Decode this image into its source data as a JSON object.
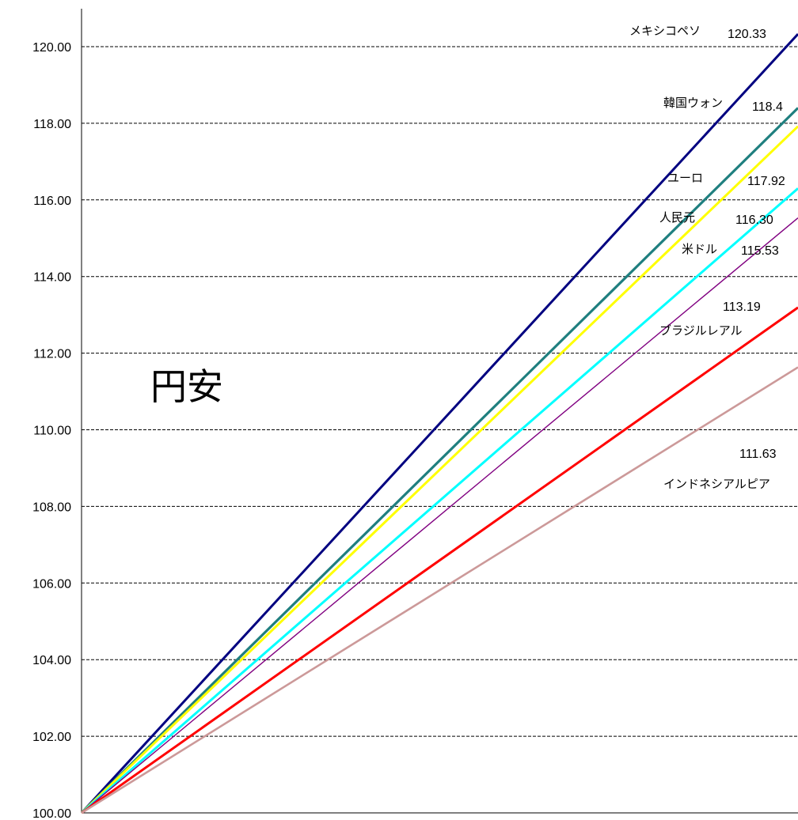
{
  "chart_data": {
    "type": "line",
    "x": [
      0,
      1
    ],
    "ylim": [
      100,
      120
    ],
    "yticks": [
      "120.00",
      "118.00",
      "116.00",
      "114.00",
      "112.00",
      "110.00",
      "108.00",
      "106.00",
      "104.00",
      "102.00",
      "100.00"
    ],
    "grid": true,
    "legend": "none",
    "annotation": "円安",
    "series": [
      {
        "name": "メキシコペソ",
        "values": [
          100,
          120.33
        ],
        "end_label": "120.33",
        "color": "#000080"
      },
      {
        "name": "韓国ウォン",
        "values": [
          100,
          118.4
        ],
        "end_label": "118.4",
        "color": "#1f7f7f"
      },
      {
        "name": "ユーロ",
        "values": [
          100,
          117.92
        ],
        "end_label": "117.92",
        "color": "#ffff00"
      },
      {
        "name": "人民元",
        "values": [
          100,
          116.3
        ],
        "end_label": "116.30",
        "color": "#00ffff"
      },
      {
        "name": "米ドル",
        "values": [
          100,
          115.53
        ],
        "end_label": "115.53",
        "color": "#800080"
      },
      {
        "name": "ブラジルレアル",
        "values": [
          100,
          113.19
        ],
        "end_label": "113.19",
        "color": "#ff0000"
      },
      {
        "name": "インドネシアルピア",
        "values": [
          100,
          111.63
        ],
        "end_label": "111.63",
        "color": "#cc9999"
      }
    ]
  }
}
